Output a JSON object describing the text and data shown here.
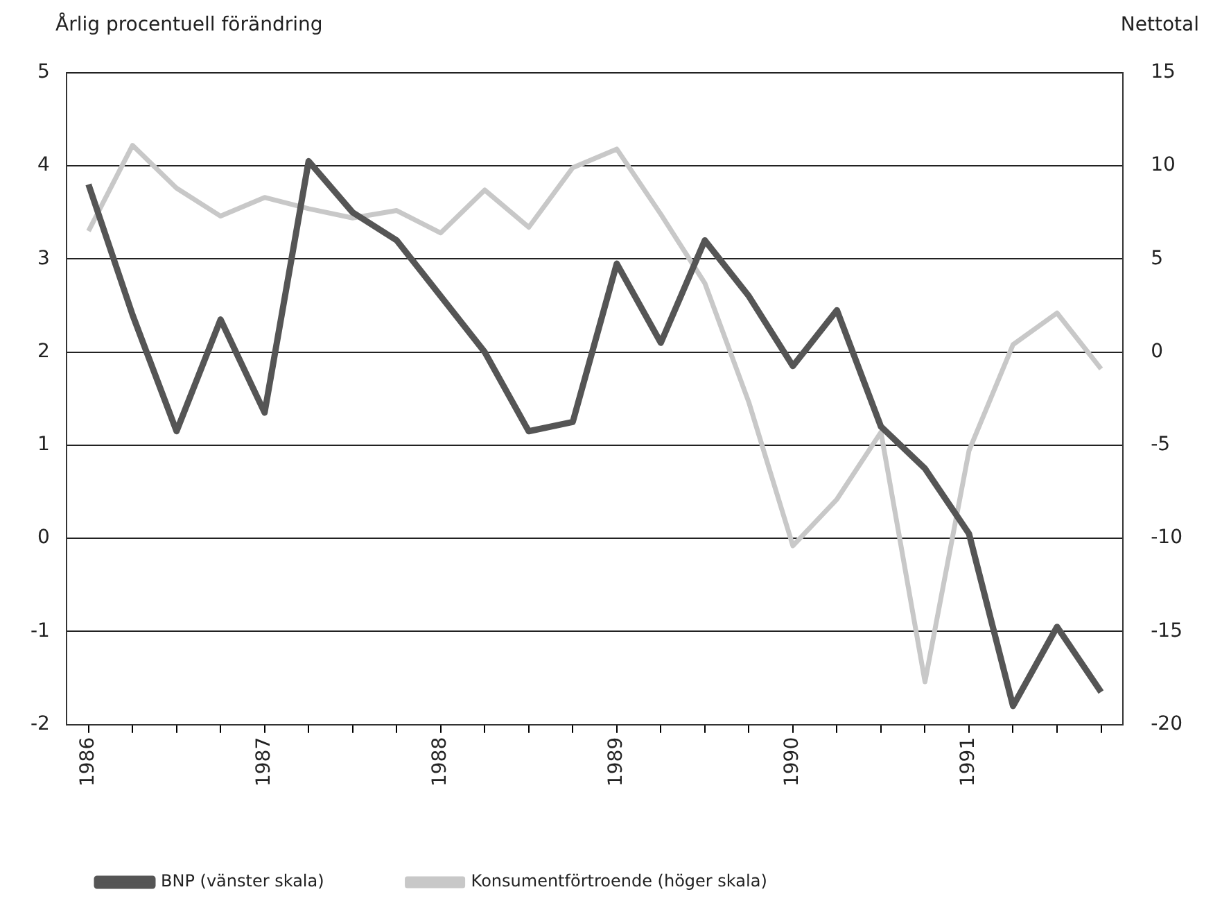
{
  "chart_data": {
    "type": "line",
    "ylabel": "Årlig procentuell förändring",
    "y2label": "Nettotal",
    "categories": [
      "1986",
      null,
      null,
      null,
      "1987",
      null,
      null,
      null,
      "1988",
      null,
      null,
      null,
      "1989",
      null,
      null,
      null,
      "1990",
      null,
      null,
      null,
      "1991",
      null,
      null,
      null
    ],
    "series": [
      {
        "name": "BNP (vänster skala)",
        "color": "#555555",
        "values": [
          3.8,
          2.4,
          1.15,
          2.35,
          1.35,
          4.05,
          3.5,
          3.2,
          2.6,
          2.0,
          1.15,
          1.25,
          2.95,
          2.1,
          3.2,
          2.6,
          1.85,
          2.45,
          1.2,
          0.75,
          0.05,
          -1.8,
          -0.95,
          -1.65
        ]
      },
      {
        "name": "Konsumentförtroende (höger skala)",
        "color": "#c8c8c8",
        "axis": "y2",
        "values": [
          6.5,
          11.1,
          8.8,
          7.3,
          8.3,
          7.7,
          7.2,
          7.6,
          6.4,
          8.7,
          6.7,
          9.9,
          10.9,
          7.4,
          3.7,
          -2.7,
          -10.4,
          -7.9,
          -4.3,
          -17.7,
          -5.3,
          0.4,
          2.1,
          -0.9
        ]
      }
    ],
    "ylim": [
      -2,
      5
    ],
    "yticks": [
      -2,
      -1,
      0,
      1,
      2,
      3,
      4,
      5
    ],
    "y2lim": [
      -20,
      15
    ],
    "y2ticks": [
      -20,
      -15,
      -10,
      -5,
      0,
      5,
      10,
      15
    ],
    "grid": "y",
    "legend": "bottom left",
    "marker": "none",
    "line_style": "solid"
  }
}
